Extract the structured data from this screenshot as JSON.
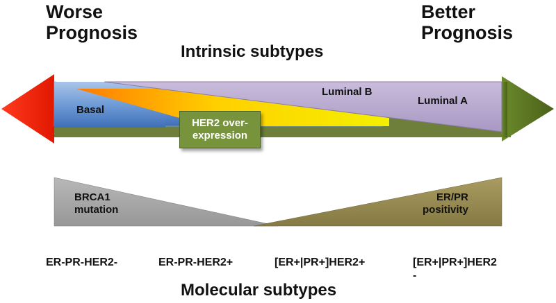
{
  "prognosis": {
    "worse": "Worse\nPrognosis",
    "better": "Better\nPrognosis"
  },
  "headings": {
    "intrinsic": "Intrinsic subtypes",
    "molecular": "Molecular subtypes"
  },
  "intrinsic_subtypes": {
    "basal": "Basal",
    "luminal_b": "Luminal B",
    "luminal_a": "Luminal A",
    "her2": "HER2 over-\nexpression"
  },
  "markers": {
    "brca1": "BRCA1\nmutation",
    "er_pr": "ER/PR\npositivity"
  },
  "molecular_subtypes": [
    "ER-PR-HER2-",
    "ER-PR-HER2+",
    "[ER+|PR+]HER2+",
    "[ER+|PR+]HER2\n-"
  ],
  "colors": {
    "left_arrow": "#ff0000",
    "right_arrow": "#4f6228",
    "basal": "#4f81bd",
    "luminal": "#b3a2c7",
    "her2_box": "#77933c",
    "brca1": "#a6a6a6",
    "er_pr": "#948a54"
  }
}
